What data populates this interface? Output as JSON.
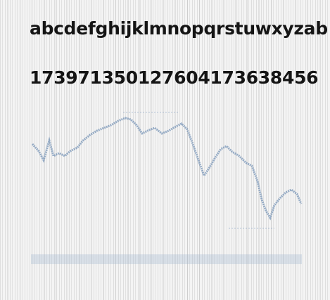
{
  "lines": [
    "abcdefghijklmnopqrstuwxyzab",
    "173971350127604173638456"
  ]
}
